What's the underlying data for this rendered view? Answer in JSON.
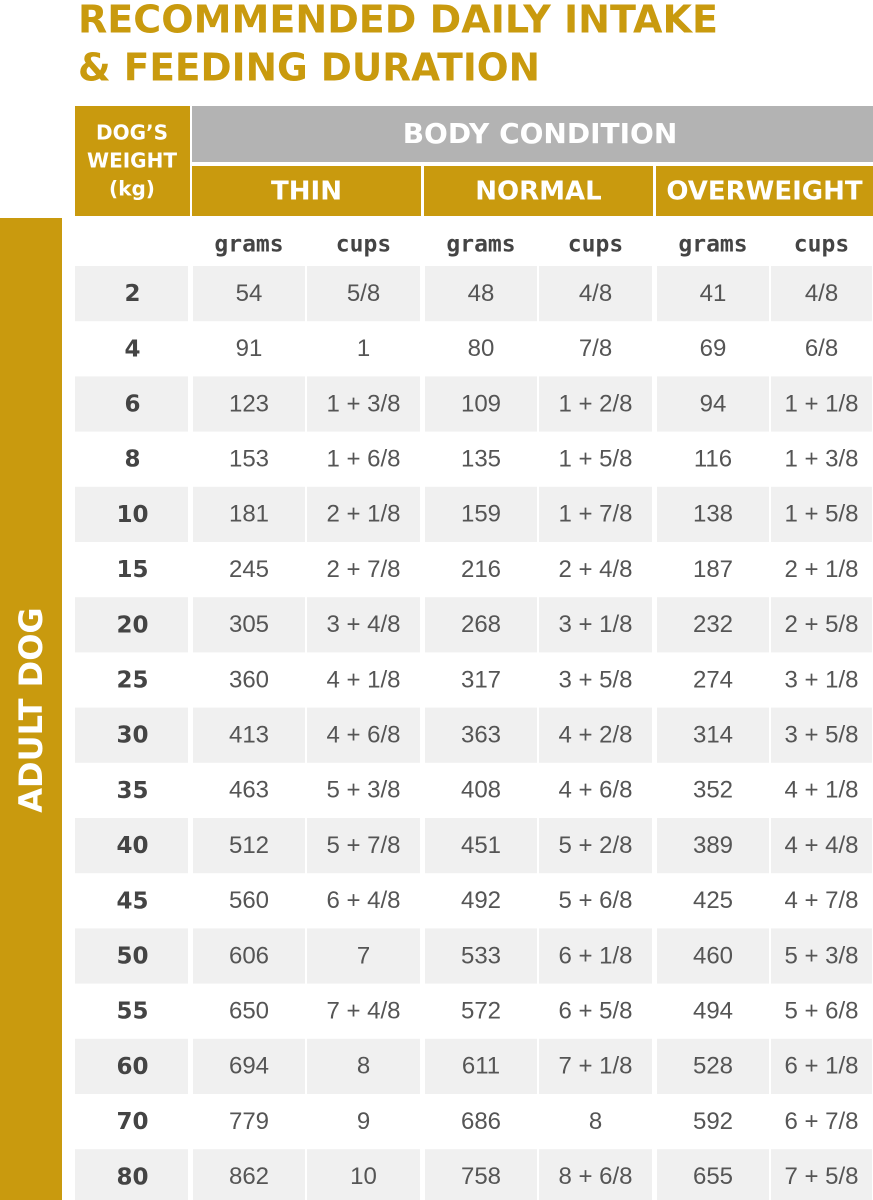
{
  "title": [
    "RECOMMENDED DAILY INTAKE",
    "& FEEDING DURATION"
  ],
  "side_label": "ADULT DOG",
  "table": {
    "weight_header": [
      "DOG’S",
      "WEIGHT",
      "(kg)"
    ],
    "group_header": "BODY CONDITION",
    "conditions": [
      "THIN",
      "NORMAL",
      "OVERWEIGHT"
    ],
    "units": [
      "grams",
      "cups",
      "grams",
      "cups",
      "grams",
      "cups"
    ],
    "rows": [
      [
        "2",
        "54",
        "5/8",
        "48",
        "4/8",
        "41",
        "4/8"
      ],
      [
        "4",
        "91",
        "1",
        "80",
        "7/8",
        "69",
        "6/8"
      ],
      [
        "6",
        "123",
        "1 + 3/8",
        "109",
        "1 + 2/8",
        "94",
        "1 + 1/8"
      ],
      [
        "8",
        "153",
        "1 + 6/8",
        "135",
        "1 + 5/8",
        "116",
        "1 + 3/8"
      ],
      [
        "10",
        "181",
        "2 + 1/8",
        "159",
        "1 + 7/8",
        "138",
        "1 + 5/8"
      ],
      [
        "15",
        "245",
        "2 + 7/8",
        "216",
        "2 + 4/8",
        "187",
        "2 + 1/8"
      ],
      [
        "20",
        "305",
        "3 + 4/8",
        "268",
        "3 + 1/8",
        "232",
        "2 + 5/8"
      ],
      [
        "25",
        "360",
        "4 + 1/8",
        "317",
        "3 + 5/8",
        "274",
        "3 + 1/8"
      ],
      [
        "30",
        "413",
        "4 + 6/8",
        "363",
        "4 + 2/8",
        "314",
        "3 + 5/8"
      ],
      [
        "35",
        "463",
        "5 + 3/8",
        "408",
        "4 + 6/8",
        "352",
        "4 + 1/8"
      ],
      [
        "40",
        "512",
        "5 + 7/8",
        "451",
        "5 + 2/8",
        "389",
        "4 + 4/8"
      ],
      [
        "45",
        "560",
        "6 + 4/8",
        "492",
        "5 + 6/8",
        "425",
        "4 + 7/8"
      ],
      [
        "50",
        "606",
        "7",
        "533",
        "6 + 1/8",
        "460",
        "5 + 3/8"
      ],
      [
        "55",
        "650",
        "7 + 4/8",
        "572",
        "6 + 5/8",
        "494",
        "5 + 6/8"
      ],
      [
        "60",
        "694",
        "8",
        "611",
        "7 + 1/8",
        "528",
        "6 + 1/8"
      ],
      [
        "70",
        "779",
        "9",
        "686",
        "8",
        "592",
        "6 + 7/8"
      ],
      [
        "80",
        "862",
        "10",
        "758",
        "8 + 6/8",
        "655",
        "7 + 5/8"
      ]
    ]
  }
}
